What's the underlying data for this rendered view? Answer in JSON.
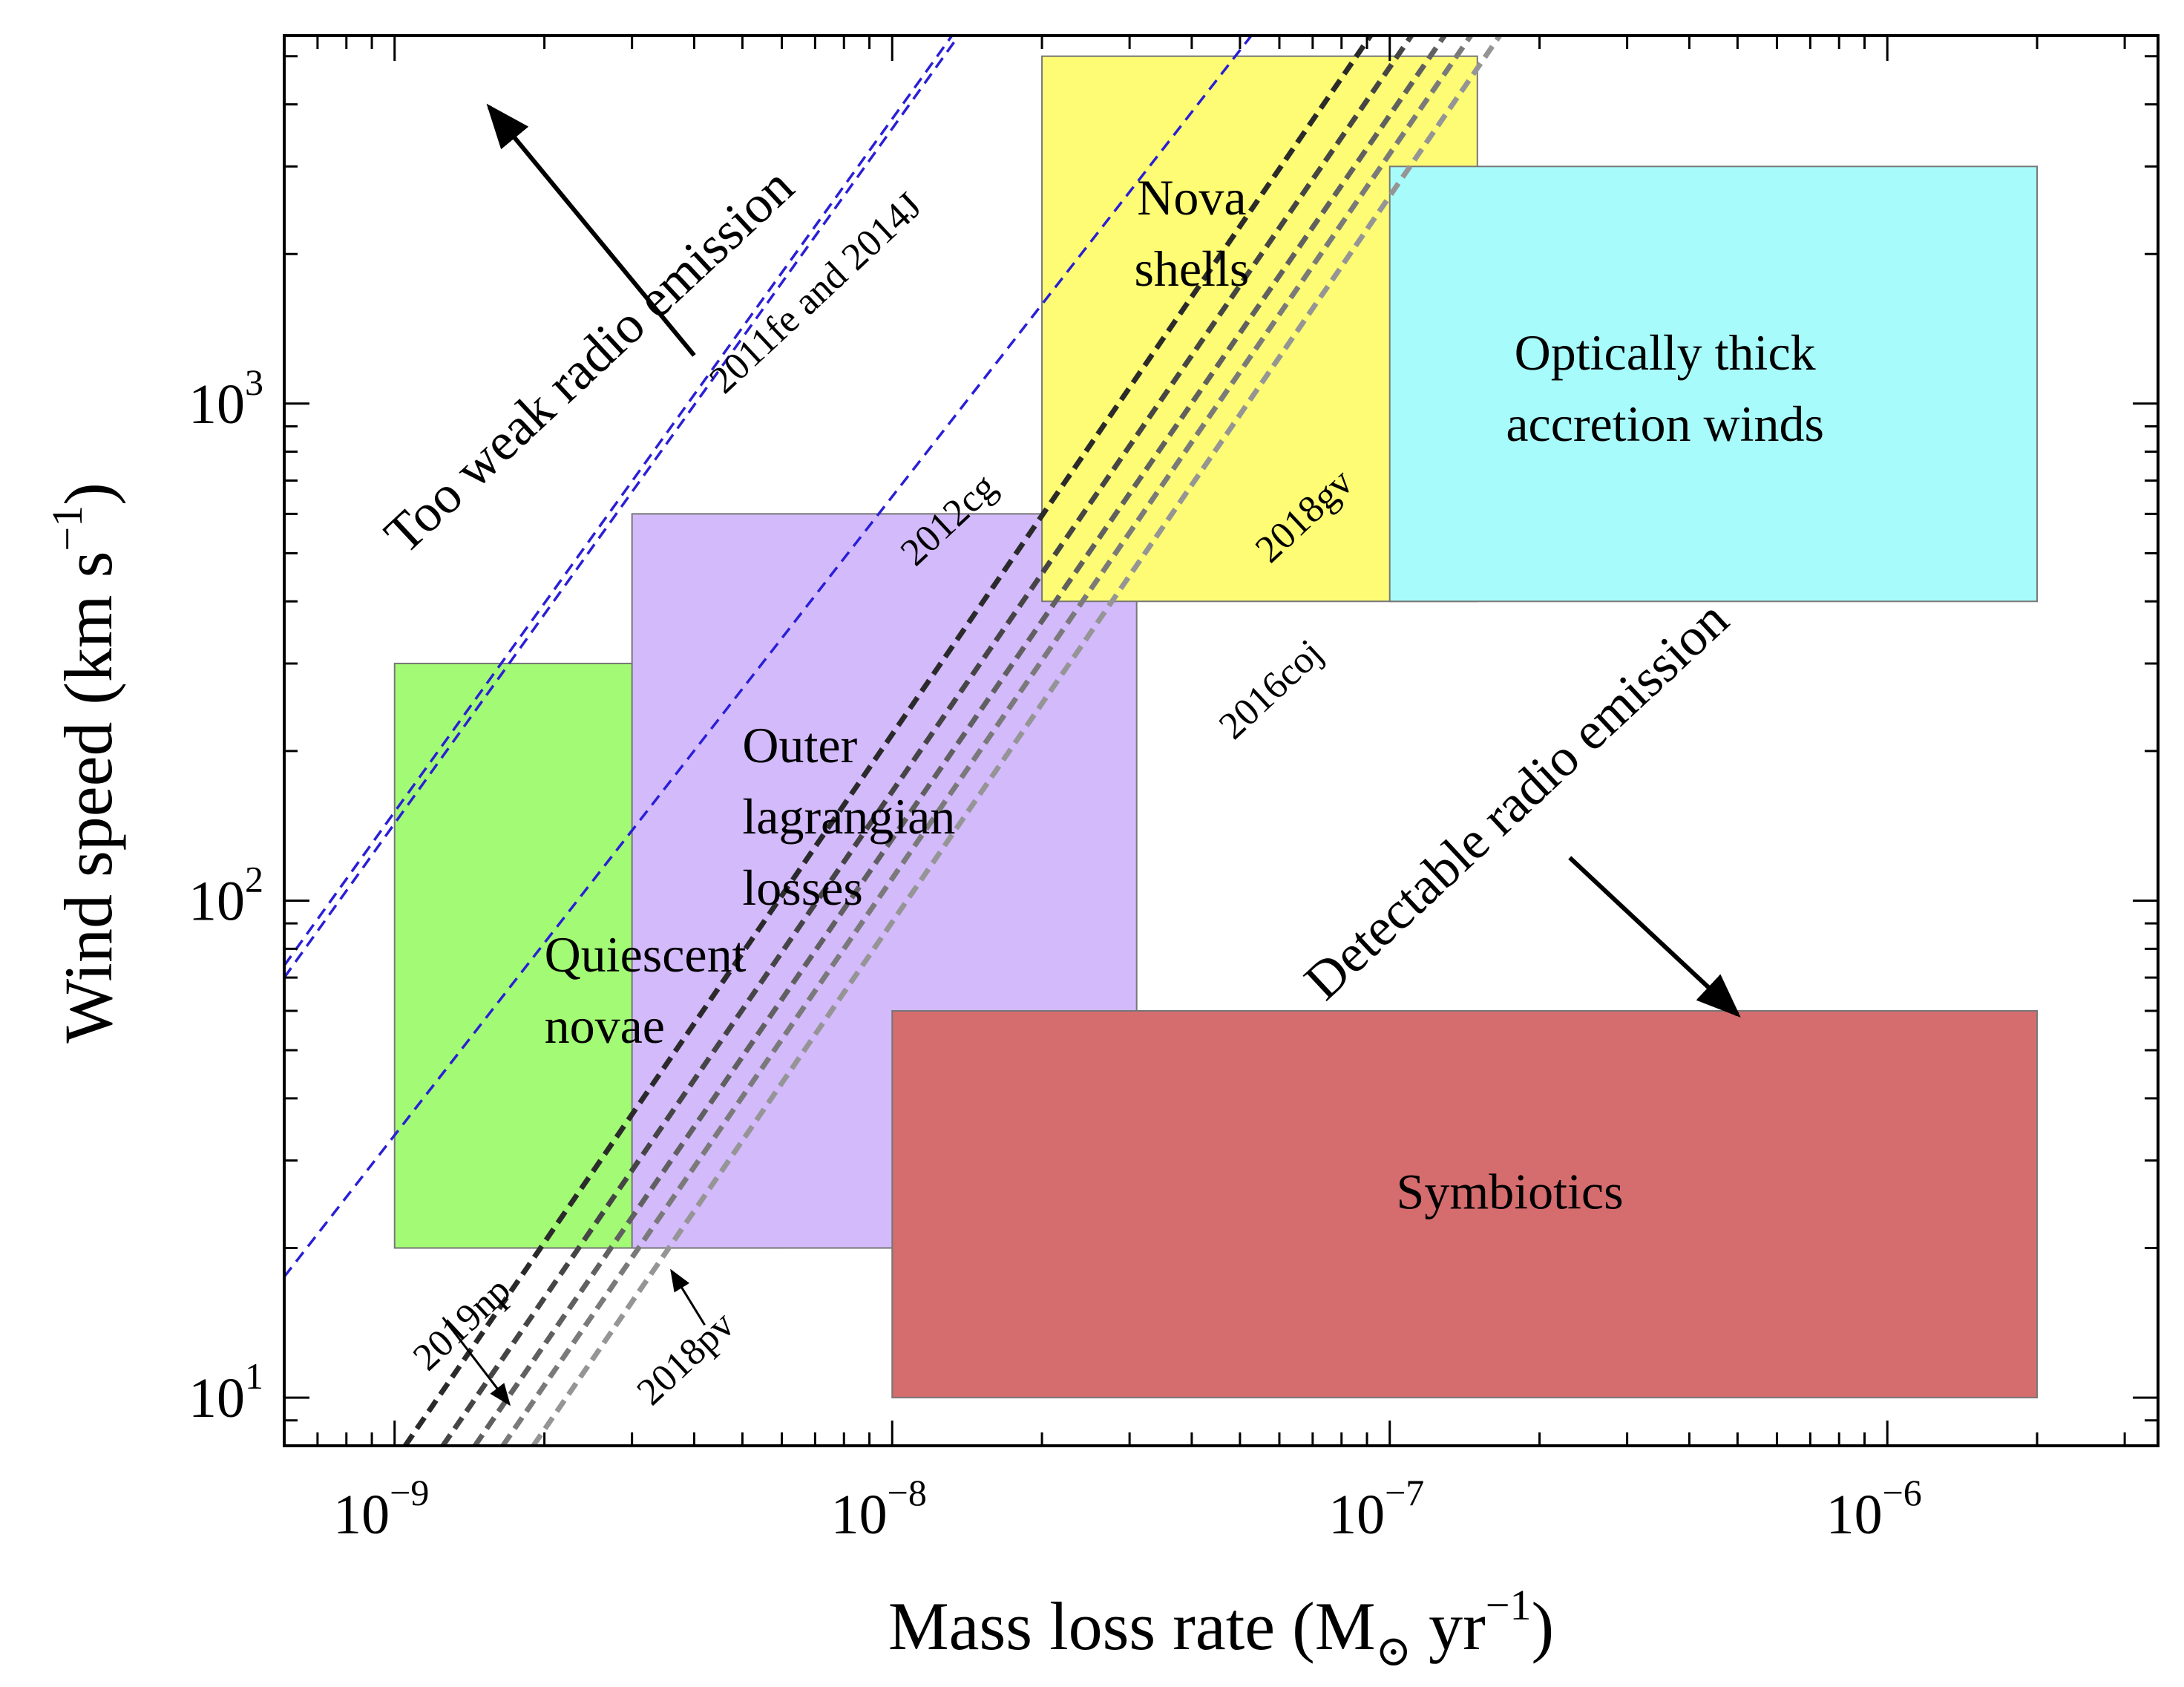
{
  "chart_data": {
    "type": "region-diagram",
    "title": "",
    "xlabel": "Mass loss rate (M⊙ yr⁻¹)",
    "xlabel_parts": {
      "main": "Mass loss rate (M",
      "sub": "⊙",
      "mid": " yr",
      "sup": "−1",
      "end": ")"
    },
    "ylabel": "Wind speed (km s⁻¹)",
    "ylabel_parts": {
      "main": "Wind speed (km s",
      "sup": "−1",
      "end": ")"
    },
    "xscale": "log",
    "yscale": "log",
    "xlim": [
      6e-10,
      3.5e-06
    ],
    "ylim": [
      8.0,
      5500
    ],
    "x_ticks": [
      {
        "value": 1e-09,
        "base": "10",
        "exp": "−9"
      },
      {
        "value": 1e-08,
        "base": "10",
        "exp": "−8"
      },
      {
        "value": 1e-07,
        "base": "10",
        "exp": "−7"
      },
      {
        "value": 1e-06,
        "base": "10",
        "exp": "−6"
      }
    ],
    "y_ticks": [
      {
        "value": 10,
        "base": "10",
        "exp": "1"
      },
      {
        "value": 100,
        "base": "10",
        "exp": "2"
      },
      {
        "value": 1000,
        "base": "10",
        "exp": "3"
      }
    ],
    "regions": [
      {
        "name": "Quiescent novae",
        "lines": [
          "Quiescent",
          "novae"
        ],
        "x": [
          1e-09,
          6e-09
        ],
        "y": [
          20,
          300
        ],
        "color": "#a3fb75",
        "label_at": [
          2e-09,
          72
        ]
      },
      {
        "name": "Outer lagrangian losses",
        "lines": [
          "Outer",
          "lagrangian",
          "losses"
        ],
        "x": [
          3e-09,
          3.1e-08
        ],
        "y": [
          20,
          600
        ],
        "color": "#d3bafb",
        "label_at": [
          5e-09,
          190
        ]
      },
      {
        "name": "Nova shells",
        "lines": [
          "Nova",
          "shells"
        ],
        "x": [
          2e-08,
          1.5e-07
        ],
        "y": [
          400,
          5000
        ],
        "color": "#fdfc74",
        "label_at": [
          4e-08,
          2400
        ]
      },
      {
        "name": "Optically thick accretion winds",
        "lines": [
          "Optically thick",
          "accretion winds"
        ],
        "x": [
          1e-07,
          2e-06
        ],
        "y": [
          400,
          3000
        ],
        "color": "#a8fbfb",
        "label_at": [
          4.5e-07,
          1170
        ]
      },
      {
        "name": "Symbiotics",
        "lines": [
          "Symbiotics"
        ],
        "x": [
          1e-08,
          2e-06
        ],
        "y": [
          10,
          60
        ],
        "color": "#d56c6e",
        "label_at": [
          1.8e-07,
          24
        ]
      }
    ],
    "series": [
      {
        "name": "2011fe",
        "group": "blue",
        "color": "#2a1fd6",
        "x": [
          6e-10,
          1.65e-08
        ],
        "y": [
          70,
          7200
        ]
      },
      {
        "name": "2014J",
        "group": "blue",
        "color": "#2a1fd6",
        "x": [
          6e-10,
          1.6e-08
        ],
        "y": [
          74,
          7200
        ]
      },
      {
        "name": "2012cg",
        "group": "blue",
        "color": "#2a1fd6",
        "x": [
          6e-10,
          6.5e-08
        ],
        "y": [
          17.5,
          7200
        ]
      },
      {
        "name": "2019np",
        "group": "gray",
        "color": "#2a2a2a",
        "x": [
          1.05e-09,
          1.1e-07
        ],
        "y": [
          8,
          7200
        ]
      },
      {
        "name": "2018gv",
        "group": "gray",
        "color": "#454545",
        "x": [
          1.25e-09,
          1.33e-07
        ],
        "y": [
          8,
          7200
        ]
      },
      {
        "name": "2018pv",
        "group": "gray",
        "color": "#606060",
        "x": [
          1.45e-09,
          1.55e-07
        ],
        "y": [
          8,
          7200
        ]
      },
      {
        "name": "series-4",
        "group": "gray",
        "color": "#7a7a7a",
        "x": [
          1.65e-09,
          1.75e-07
        ],
        "y": [
          8,
          7200
        ]
      },
      {
        "name": "2016coj",
        "group": "gray",
        "color": "#959595",
        "x": [
          1.9e-09,
          2e-07
        ],
        "y": [
          8,
          7200
        ]
      }
    ],
    "line_labels": [
      {
        "text": "2011fe and 2014J",
        "at": [
          7.3e-09,
          1600
        ],
        "angle": -43
      },
      {
        "text": "2012cg",
        "at": [
          1.35e-08,
          560
        ],
        "angle": -43
      },
      {
        "text": "2018gv",
        "at": [
          7e-08,
          570
        ],
        "angle": -43
      },
      {
        "text": "2016coj",
        "at": [
          6e-08,
          255
        ],
        "angle": -43
      },
      {
        "text": "2019np",
        "at": [
          1.42e-09,
          13.5
        ],
        "angle": -43
      },
      {
        "text": "2018pv",
        "at": [
          4e-09,
          11.5
        ],
        "angle": -43
      }
    ],
    "pointers": [
      {
        "label": "2019np",
        "from": [
          1.25e-09,
          14.5
        ],
        "to": [
          1.7e-09,
          9.7
        ]
      },
      {
        "label": "2018pv",
        "from": [
          4.2e-09,
          14.0
        ],
        "to": [
          3.6e-09,
          18.0
        ]
      }
    ],
    "zones": [
      {
        "text": "Too weak radio emission",
        "at": [
          2.6e-09,
          1150
        ],
        "angle": -43,
        "arrow_from": [
          4e-09,
          1250
        ],
        "arrow_to": [
          1.55e-09,
          3950
        ]
      },
      {
        "text": "Detectable radio emission",
        "at": [
          1.9e-07,
          150
        ],
        "angle": -43,
        "arrow_from": [
          2.3e-07,
          122
        ],
        "arrow_to": [
          5e-07,
          59
        ]
      }
    ],
    "legend": "none"
  }
}
